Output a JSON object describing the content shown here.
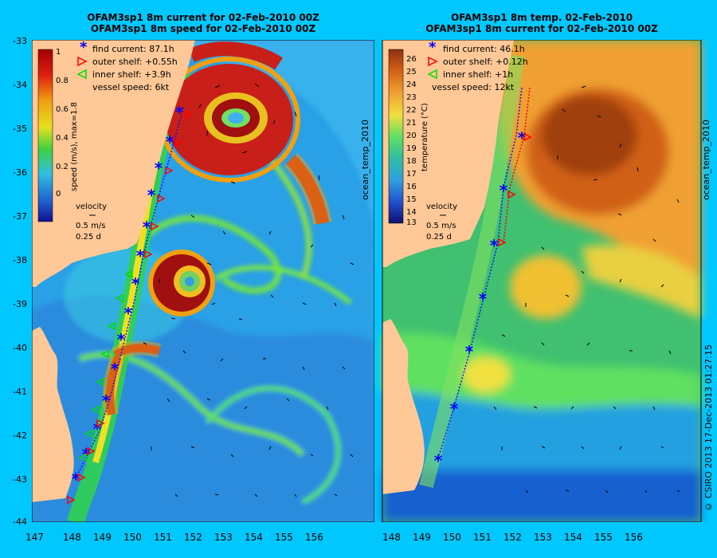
{
  "left": {
    "title1": "OFAM3sp1 8m current for 02-Feb-2010 00Z",
    "title2": "OFAM3sp1 8m speed for 02-Feb-2010 00Z",
    "colorbar_label": "speed (m/s), max=1.8",
    "colorbar_ticks": [
      "1",
      "0.8",
      "0.6",
      "0.4",
      "0.2",
      "0"
    ],
    "legend": {
      "find": "find current: 87.1h",
      "outer": "outer shelf: +0.55h",
      "inner": "inner shelf: +3.9h",
      "speed": "vessel speed: 6kt"
    },
    "velocity": {
      "title": "velocity",
      "scale1": "0.5 m/s",
      "scale2": "0.25 d"
    }
  },
  "right": {
    "title1": "OFAM3sp1 8m temp. 02-Feb-2010",
    "title2": "OFAM3sp1 8m current for 02-Feb-2010 00Z",
    "colorbar_label": "temperature (°C)",
    "side_label": "ocean_temp_2010",
    "colorbar_ticks": [
      "26",
      "25",
      "24",
      "23",
      "22",
      "21",
      "20",
      "19",
      "18",
      "17",
      "16",
      "15",
      "14",
      "13"
    ],
    "legend": {
      "find": "find current: 46.1h",
      "outer": "outer shelf: +0.12h",
      "inner": "inner shelf: +1h",
      "speed": "vessel speed: 12kt"
    },
    "velocity": {
      "title": "velocity",
      "scale1": "0.5 m/s",
      "scale2": "0.25 d"
    }
  },
  "right_edge_label": "ocean_temp_2010",
  "credit": "© CSIRO 2013   17-Dec-2013 01:27:15",
  "axes": {
    "lat_ticks": [
      "-33",
      "-34",
      "-35",
      "-36",
      "-37",
      "-38",
      "-39",
      "-40",
      "-41",
      "-42",
      "-43",
      "-44"
    ],
    "lon_ticks": [
      "147",
      "148",
      "149",
      "150",
      "151",
      "152",
      "153",
      "154",
      "155",
      "156"
    ]
  },
  "colors": {
    "background": "#00c8ff",
    "land": "#ffc896",
    "find_marker": "#0000ff",
    "outer_marker": "#ff0000",
    "inner_marker": "#00dd00"
  }
}
